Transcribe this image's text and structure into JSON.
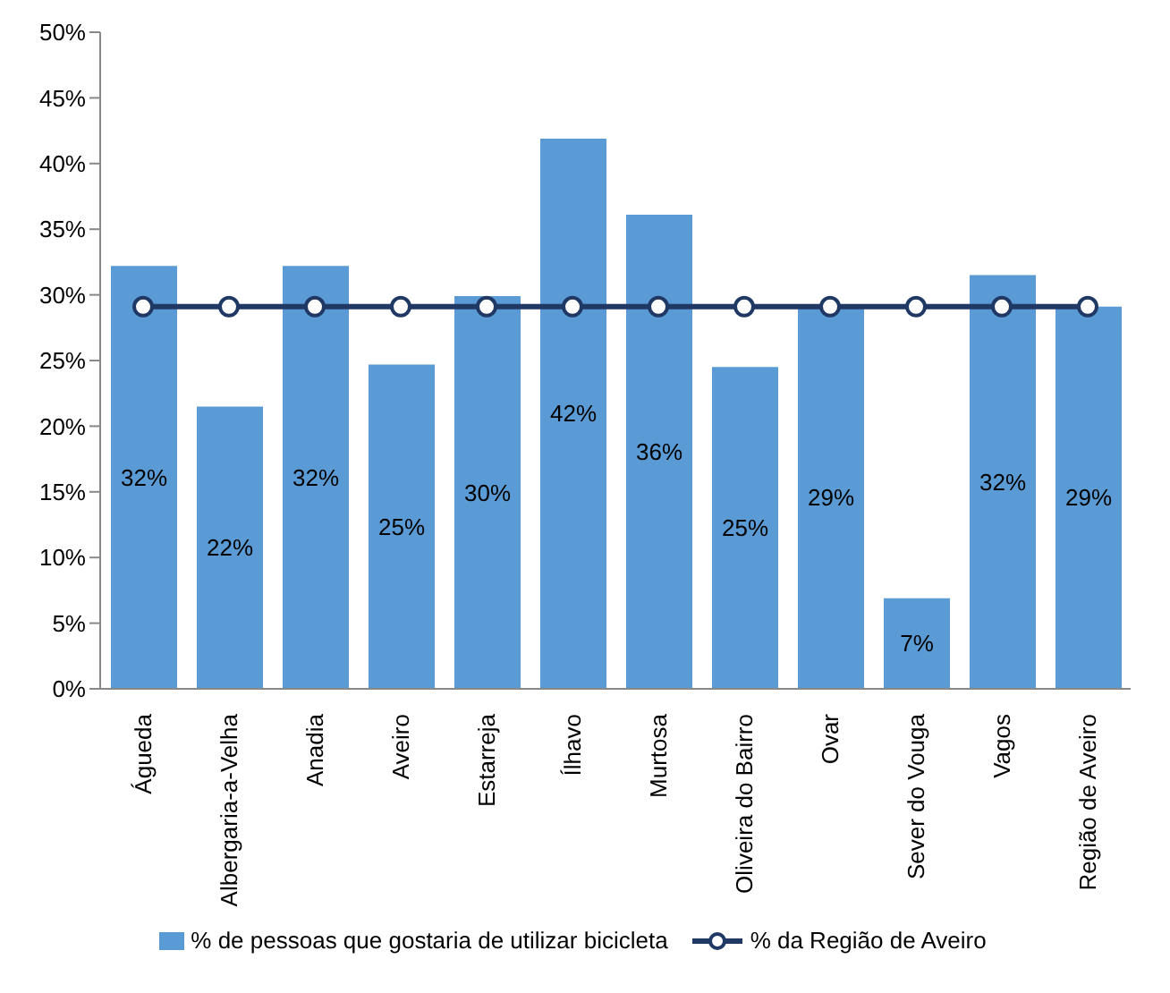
{
  "chart_data": {
    "type": "bar",
    "categories": [
      "Águeda",
      "Albergaria-a-Velha",
      "Anadia",
      "Aveiro",
      "Estarreja",
      "Ílhavo",
      "Murtosa",
      "Oliveira do Bairro",
      "Ovar",
      "Sever do Vouga",
      "Vagos",
      "Região de Aveiro"
    ],
    "series": [
      {
        "name": "% de pessoas que gostaria de utilizar bicicleta",
        "color": "#5b9bd5",
        "values": [
          32.2,
          21.5,
          32.2,
          24.7,
          29.9,
          41.9,
          36.1,
          24.5,
          29.2,
          6.9,
          31.5,
          29.1
        ],
        "value_labels": [
          "32%",
          "22%",
          "32%",
          "25%",
          "30%",
          "42%",
          "36%",
          "25%",
          "29%",
          "7%",
          "32%",
          "29%"
        ]
      },
      {
        "name": "% da Região de Aveiro",
        "type": "line",
        "color": "#1f3864",
        "marker": "circle",
        "values": [
          29.1,
          29.1,
          29.1,
          29.1,
          29.1,
          29.1,
          29.1,
          29.1,
          29.1,
          29.1,
          29.1,
          29.1
        ]
      }
    ],
    "ylim": [
      0,
      50
    ],
    "yticks": [
      {
        "value": 0,
        "label": "0%"
      },
      {
        "value": 5,
        "label": "5%"
      },
      {
        "value": 10,
        "label": "10%"
      },
      {
        "value": 15,
        "label": "15%"
      },
      {
        "value": 20,
        "label": "20%"
      },
      {
        "value": 25,
        "label": "25%"
      },
      {
        "value": 30,
        "label": "30%"
      },
      {
        "value": 35,
        "label": "35%"
      },
      {
        "value": 40,
        "label": "40%"
      },
      {
        "value": 45,
        "label": "45%"
      },
      {
        "value": 50,
        "label": "50%"
      }
    ],
    "grid": false,
    "legend": "bottom"
  }
}
